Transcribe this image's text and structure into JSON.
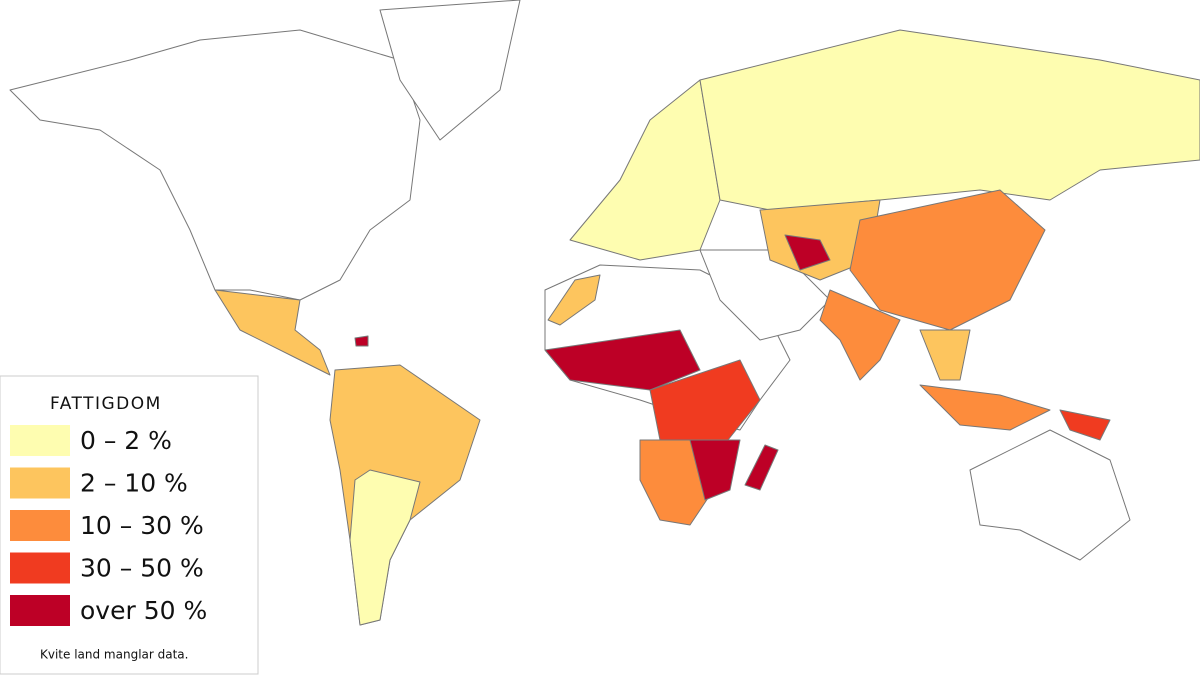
{
  "legend": {
    "title": "FATTIGDOM",
    "items": [
      {
        "label": "0 – 2 %",
        "color": "#fefdb0"
      },
      {
        "label": "2 – 10 %",
        "color": "#fdc55e"
      },
      {
        "label": "10 – 30 %",
        "color": "#fd8c3c"
      },
      {
        "label": "30 – 50 %",
        "color": "#f03b20"
      },
      {
        "label": "over 50 %",
        "color": "#bd0026"
      }
    ]
  },
  "note": "Kvite land manglar data."
}
